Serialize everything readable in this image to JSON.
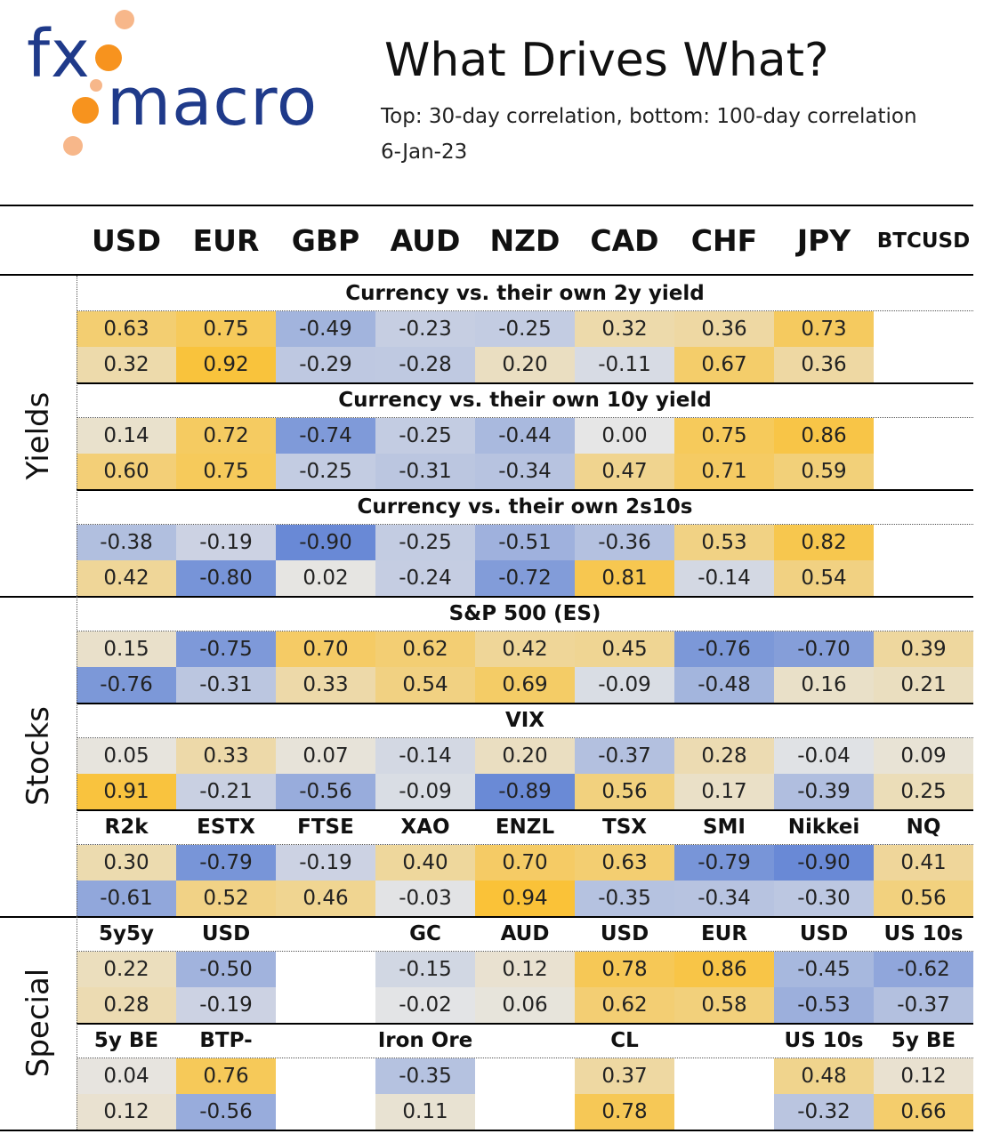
{
  "logo": {
    "text": "fxmacro"
  },
  "header": {
    "title": "What Drives What?",
    "subtitle": "Top: 30-day correlation, bottom: 100-day correlation",
    "date": "6-Jan-23"
  },
  "colors": {
    "positive": "#FBC02D",
    "negative": "#5B7FD4",
    "neutral": "#E6E6E6",
    "brand_blue": "#1f3a8a",
    "brand_orange": "#F7931E"
  },
  "chart_data": {
    "type": "table",
    "columns": [
      "USD",
      "EUR",
      "GBP",
      "AUD",
      "NZD",
      "CAD",
      "CHF",
      "JPY",
      "BTCUSD"
    ],
    "groups": [
      {
        "name": "Yields",
        "sections": [
          {
            "title": "Currency vs. their own 2y yield",
            "top": [
              "0.63",
              "0.75",
              "-0.49",
              "-0.23",
              "-0.25",
              "0.32",
              "0.36",
              "0.73",
              ""
            ],
            "bottom": [
              "0.32",
              "0.92",
              "-0.29",
              "-0.28",
              "0.20",
              "-0.11",
              "0.67",
              "0.36",
              ""
            ]
          },
          {
            "title": "Currency vs. their own 10y yield",
            "top": [
              "0.14",
              "0.72",
              "-0.74",
              "-0.25",
              "-0.44",
              "0.00",
              "0.75",
              "0.86",
              ""
            ],
            "bottom": [
              "0.60",
              "0.75",
              "-0.25",
              "-0.31",
              "-0.34",
              "0.47",
              "0.71",
              "0.59",
              ""
            ]
          },
          {
            "title": "Currency vs. their own 2s10s",
            "top": [
              "-0.38",
              "-0.19",
              "-0.90",
              "-0.25",
              "-0.51",
              "-0.36",
              "0.53",
              "0.82",
              ""
            ],
            "bottom": [
              "0.42",
              "-0.80",
              "0.02",
              "-0.24",
              "-0.72",
              "0.81",
              "-0.14",
              "0.54",
              ""
            ]
          }
        ]
      },
      {
        "name": "Stocks",
        "sections": [
          {
            "title": "S&P 500 (ES)",
            "top": [
              "0.15",
              "-0.75",
              "0.70",
              "0.62",
              "0.42",
              "0.45",
              "-0.76",
              "-0.70",
              "0.39"
            ],
            "bottom": [
              "-0.76",
              "-0.31",
              "0.33",
              "0.54",
              "0.69",
              "-0.09",
              "-0.48",
              "0.16",
              "0.21"
            ]
          },
          {
            "title": "VIX",
            "top": [
              "0.05",
              "0.33",
              "0.07",
              "-0.14",
              "0.20",
              "-0.37",
              "0.28",
              "-0.04",
              "0.09"
            ],
            "bottom": [
              "0.91",
              "-0.21",
              "-0.56",
              "-0.09",
              "-0.89",
              "0.56",
              "0.17",
              "-0.39",
              "0.25"
            ]
          },
          {
            "labels": [
              "R2k",
              "ESTX",
              "FTSE",
              "XAO",
              "ENZL",
              "TSX",
              "SMI",
              "Nikkei",
              "NQ"
            ],
            "top": [
              "0.30",
              "-0.79",
              "-0.19",
              "0.40",
              "0.70",
              "0.63",
              "-0.79",
              "-0.90",
              "0.41"
            ],
            "bottom": [
              "-0.61",
              "0.52",
              "0.46",
              "-0.03",
              "0.94",
              "-0.35",
              "-0.34",
              "-0.30",
              "0.56"
            ]
          }
        ]
      },
      {
        "name": "Special",
        "sections": [
          {
            "labels": [
              "5y5y",
              "USD",
              "",
              "GC",
              "AUD",
              "USD",
              "EUR",
              "USD",
              "US 10s"
            ],
            "top": [
              "0.22",
              "-0.50",
              "",
              "-0.15",
              "0.12",
              "0.78",
              "0.86",
              "-0.45",
              "-0.62"
            ],
            "bottom": [
              "0.28",
              "-0.19",
              "",
              "-0.02",
              "0.06",
              "0.62",
              "0.58",
              "-0.53",
              "-0.37"
            ]
          },
          {
            "labels": [
              "5y BE",
              "BTP-BND",
              "",
              "Iron Ore",
              "",
              "CL",
              "",
              "US 10s",
              "5y BE"
            ],
            "top": [
              "0.04",
              "0.76",
              "",
              "-0.35",
              "",
              "0.37",
              "",
              "0.48",
              "0.12"
            ],
            "bottom": [
              "0.12",
              "-0.56",
              "",
              "0.11",
              "",
              "0.78",
              "",
              "-0.32",
              "0.66"
            ]
          }
        ]
      }
    ]
  }
}
